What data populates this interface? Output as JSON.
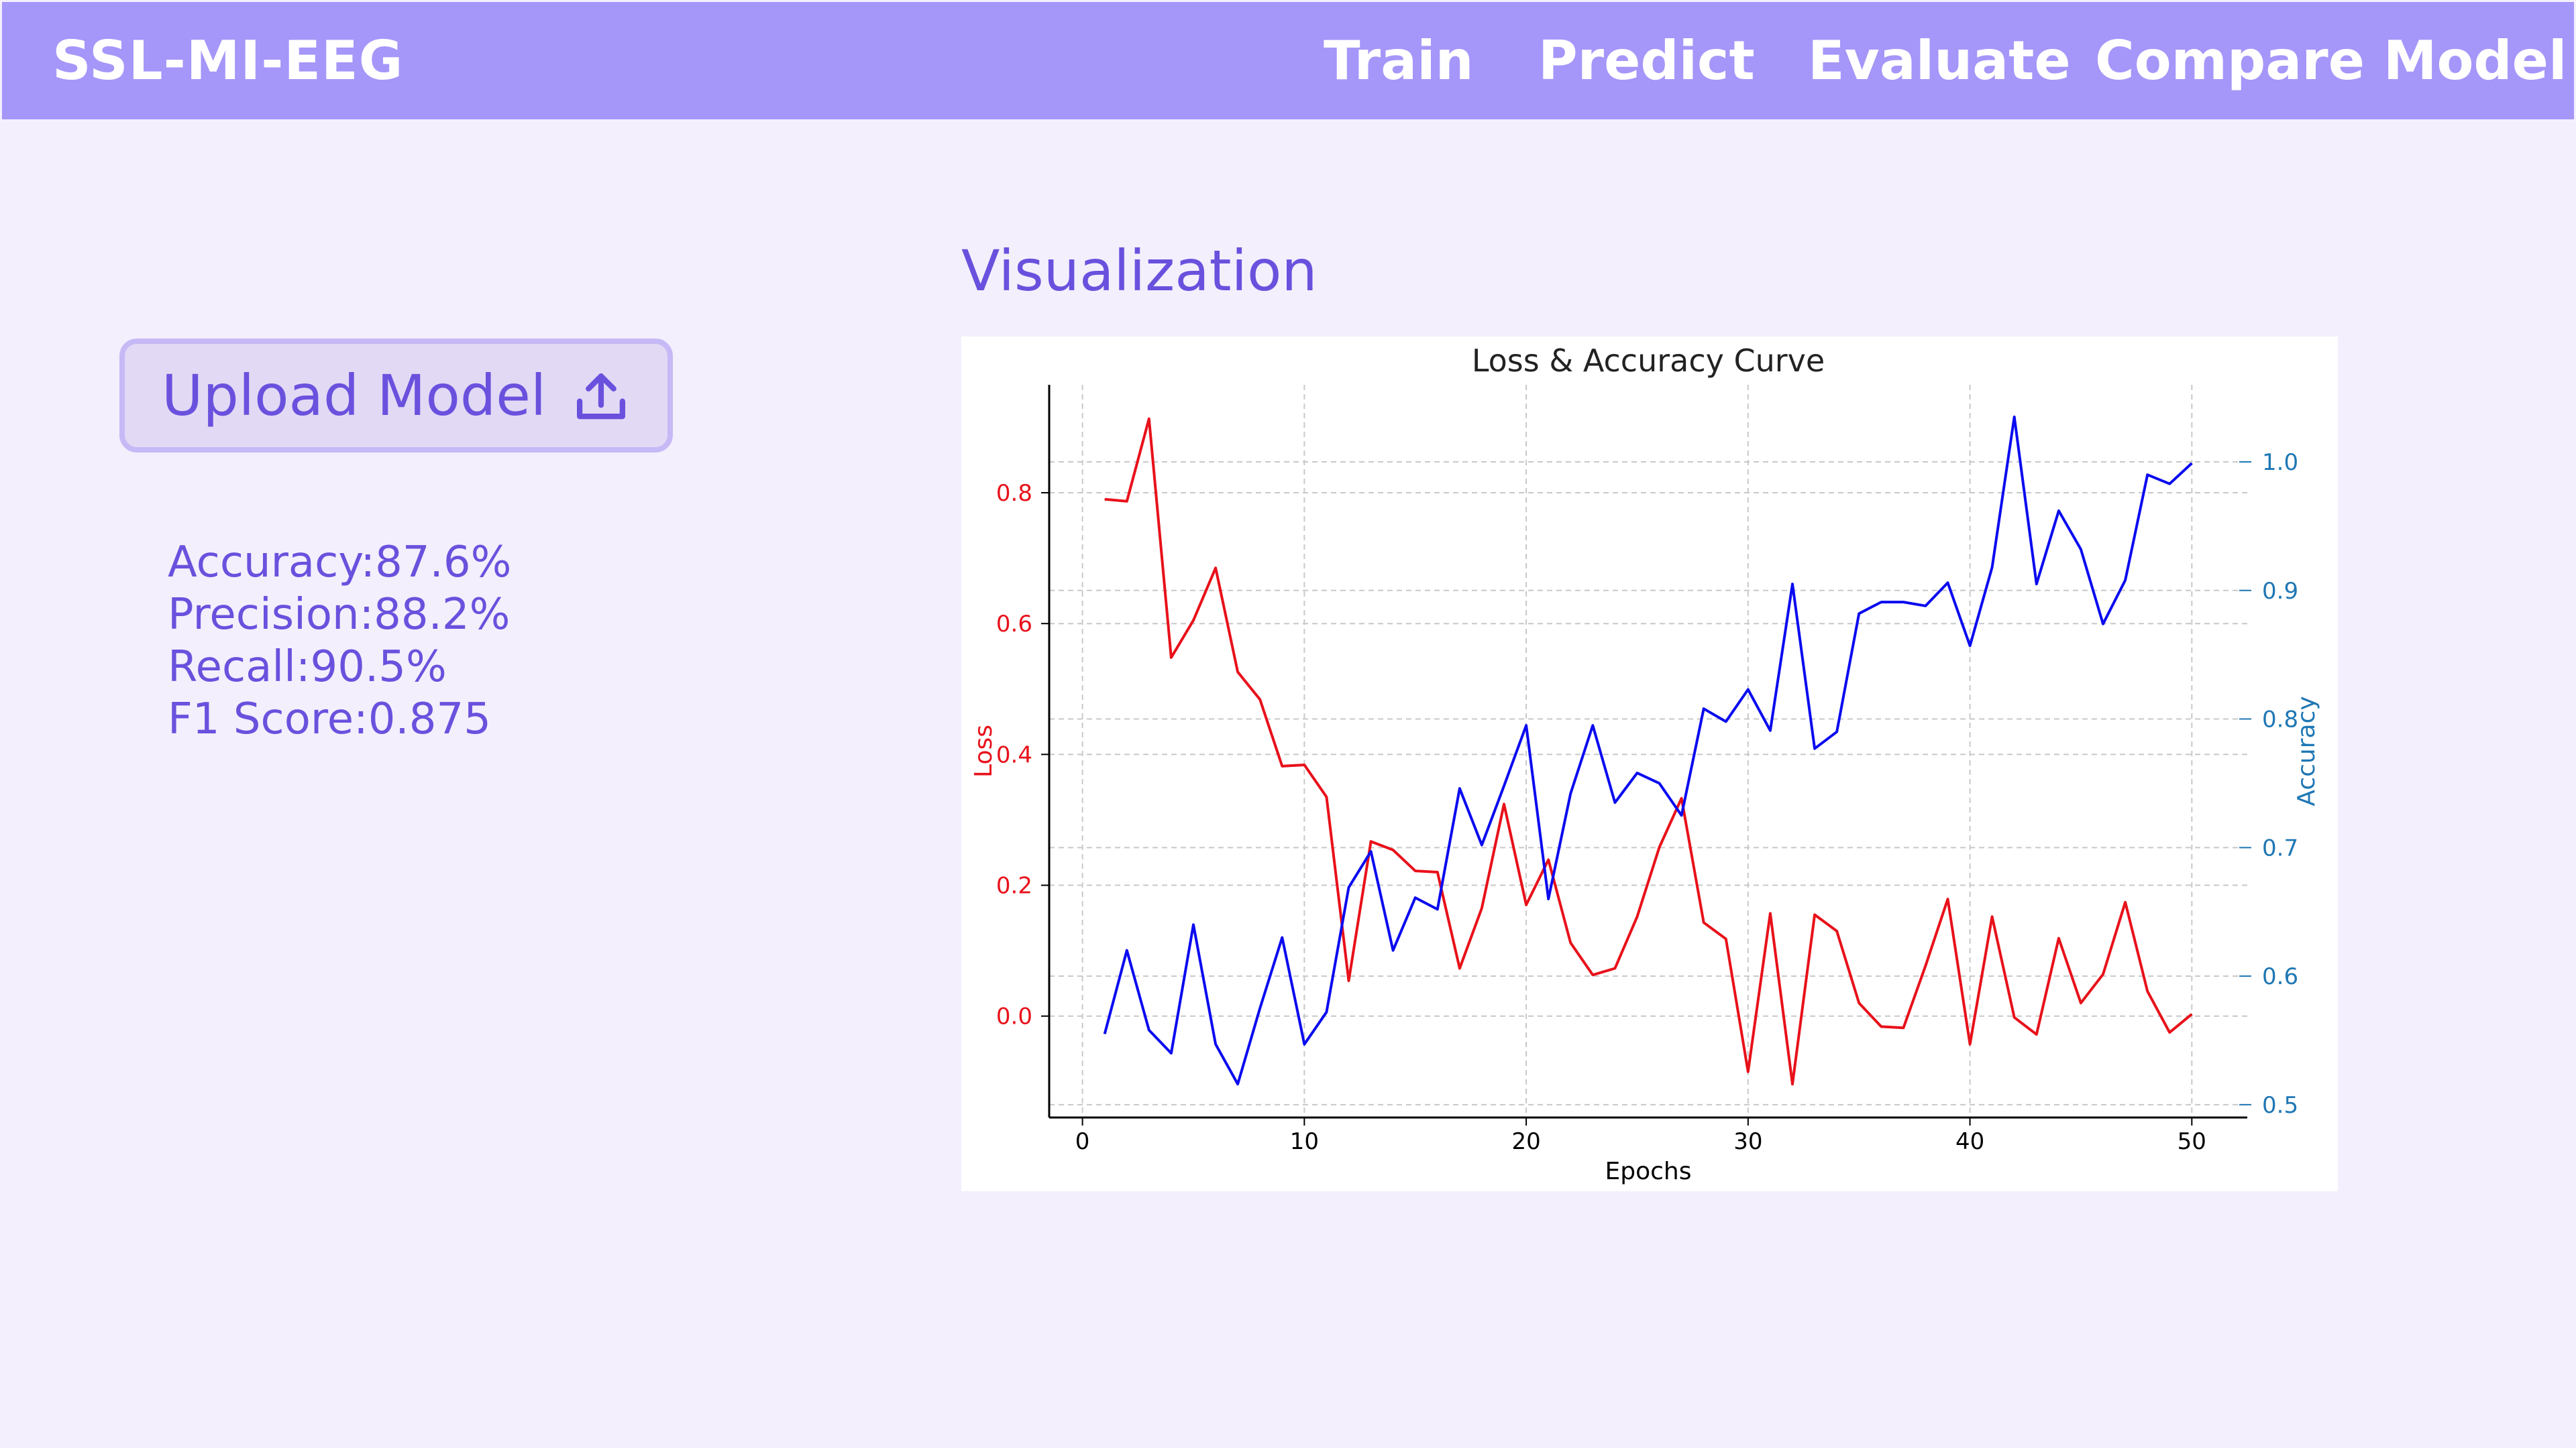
{
  "app": {
    "title": "SSL-MI-EEG"
  },
  "nav": {
    "items": [
      {
        "label": "Train"
      },
      {
        "label": "Predict"
      },
      {
        "label": "Evaluate"
      },
      {
        "label": "Compare Model"
      }
    ]
  },
  "upload": {
    "label": "Upload Model",
    "icon": "upload-icon"
  },
  "metrics": [
    {
      "label": "Accuracy:",
      "value": "87.6%"
    },
    {
      "label": "Precision:",
      "value": "88.2%"
    },
    {
      "label": "Recall:",
      "value": "90.5%"
    },
    {
      "label": "F1 Score:",
      "value": "0.875"
    }
  ],
  "visualization": {
    "heading": "Visualization"
  },
  "colors": {
    "navbar": "#a596f9",
    "accent": "#6a51dd",
    "background": "#f3effd",
    "loss_series": "#e8111a",
    "accuracy_series": "#0b0bf0",
    "accuracy_axis": "#1f77b4"
  },
  "chart_data": {
    "type": "line",
    "title": "Loss & Accuracy Curve",
    "xlabel": "Epochs",
    "ylabel": "Loss",
    "ylabel_right": "Accuracy",
    "x": [
      1,
      2,
      3,
      4,
      5,
      6,
      7,
      8,
      9,
      10,
      11,
      12,
      13,
      14,
      15,
      16,
      17,
      18,
      19,
      20,
      21,
      22,
      23,
      24,
      25,
      26,
      27,
      28,
      29,
      30,
      31,
      32,
      33,
      34,
      35,
      36,
      37,
      38,
      39,
      40,
      41,
      42,
      43,
      44,
      45,
      46,
      47,
      48,
      49,
      50
    ],
    "xlim": [
      -1.5,
      52.5
    ],
    "xticks": [
      0,
      10,
      20,
      30,
      40,
      50
    ],
    "ylim_left": [
      -0.155,
      0.965
    ],
    "yticks_left": [
      0.0,
      0.2,
      0.4,
      0.6,
      0.8
    ],
    "ylim_right": [
      0.49,
      1.06
    ],
    "yticks_right": [
      0.5,
      0.6,
      0.7,
      0.8,
      0.9,
      1.0
    ],
    "grid": true,
    "series": [
      {
        "name": "Loss",
        "axis": "left",
        "values": [
          0.79,
          0.787,
          0.913,
          0.548,
          0.605,
          0.685,
          0.526,
          0.484,
          0.382,
          0.384,
          0.335,
          0.054,
          0.267,
          0.254,
          0.222,
          0.22,
          0.073,
          0.165,
          0.324,
          0.17,
          0.239,
          0.112,
          0.063,
          0.073,
          0.152,
          0.258,
          0.333,
          0.143,
          0.118,
          -0.085,
          0.157,
          -0.104,
          0.155,
          0.13,
          0.02,
          -0.016,
          -0.018,
          0.077,
          0.179,
          -0.043,
          0.152,
          -0.002,
          -0.028,
          0.119,
          0.02,
          0.064,
          0.174,
          0.038,
          -0.025,
          0.003
        ]
      },
      {
        "name": "Accuracy",
        "axis": "right",
        "values": [
          0.555,
          0.62,
          0.558,
          0.54,
          0.64,
          0.547,
          0.516,
          0.575,
          0.63,
          0.547,
          0.572,
          0.669,
          0.697,
          0.62,
          0.661,
          0.652,
          0.746,
          0.702,
          0.748,
          0.795,
          0.66,
          0.742,
          0.795,
          0.735,
          0.758,
          0.75,
          0.725,
          0.808,
          0.798,
          0.823,
          0.791,
          0.905,
          0.777,
          0.79,
          0.882,
          0.891,
          0.891,
          0.888,
          0.906,
          0.857,
          0.918,
          1.035,
          0.905,
          0.962,
          0.932,
          0.874,
          0.908,
          0.99,
          0.983,
          0.999
        ]
      }
    ]
  }
}
